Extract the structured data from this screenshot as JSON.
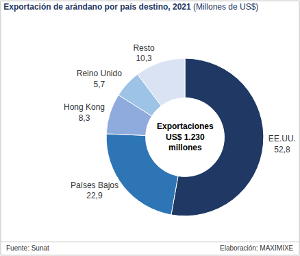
{
  "chart_data": {
    "type": "pie",
    "title": "Exportación de arándano por país destino, 2021",
    "subtitle": "(Millones de US$)",
    "categories": [
      "EE.UU.",
      "Países Bajos",
      "Hong Kong",
      "Reino Unido",
      "Resto"
    ],
    "values": [
      52.8,
      22.9,
      8.3,
      5.7,
      10.3
    ],
    "value_labels": [
      "52,8",
      "22,9",
      "8,3",
      "5,7",
      "10,3"
    ],
    "colors": [
      "#1f3864",
      "#2e75b6",
      "#8faadc",
      "#9dc3e6",
      "#dae3f3"
    ],
    "data_labels": true,
    "center_text": [
      "Exportaciones",
      "US$ 1.230",
      "millones"
    ],
    "source": "Fuente: Sunat",
    "credit": "Elaboración: MAXIMIXE"
  }
}
